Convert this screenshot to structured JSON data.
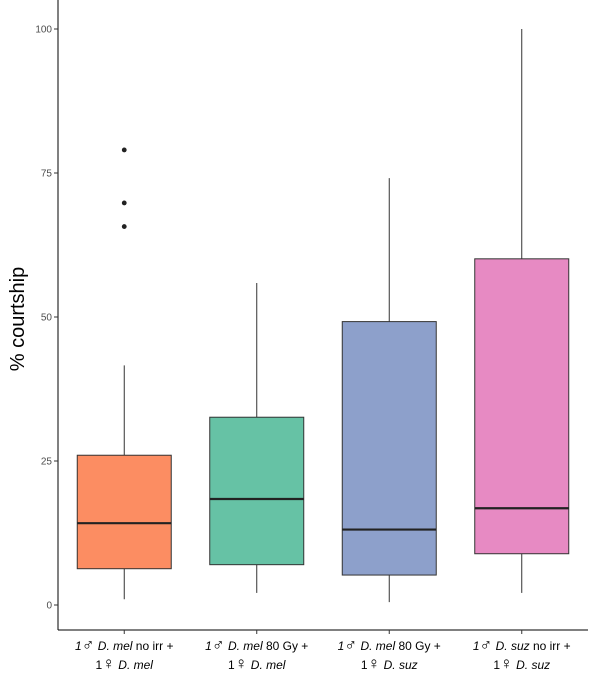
{
  "chart_data": {
    "type": "box",
    "ylabel": "% courtship",
    "xlabel": "",
    "ylim": [
      0,
      100
    ],
    "yticks": [
      0,
      25,
      50,
      75,
      100
    ],
    "grid": false,
    "legend": "none",
    "categories": [
      {
        "line1": {
          "count": "1",
          "male_symbol": "♂",
          "species": "D. mel",
          "treatment": " no irr +"
        },
        "line2": {
          "count": "1",
          "female_symbol": "♀",
          "species": "D. mel"
        },
        "color": "#fc8d62",
        "whisker_low": 1,
        "q1": 6.3,
        "median": 14.2,
        "q3": 26,
        "whisker_high": 41.6,
        "outliers": [
          65.7,
          69.8,
          79
        ]
      },
      {
        "line1": {
          "count": "1",
          "male_symbol": "♂",
          "species": "D. mel",
          "treatment": " 80 Gy +"
        },
        "line2": {
          "count": "1",
          "female_symbol": "♀",
          "species": "D. mel"
        },
        "color": "#66c2a5",
        "whisker_low": 2.1,
        "q1": 7,
        "median": 18.4,
        "q3": 32.6,
        "whisker_high": 55.9,
        "outliers": []
      },
      {
        "line1": {
          "count": "1",
          "male_symbol": "♂",
          "species": "D. mel",
          "treatment": " 80 Gy +"
        },
        "line2": {
          "count": "1",
          "female_symbol": "♀",
          "species": "D. suz"
        },
        "color": "#8da0cb",
        "whisker_low": 0.5,
        "q1": 5.2,
        "median": 13.1,
        "q3": 49.2,
        "whisker_high": 74.1,
        "outliers": []
      },
      {
        "line1": {
          "count": "1",
          "male_symbol": "♂",
          "species": "D. suz",
          "treatment": " no irr +"
        },
        "line2": {
          "count": "1",
          "female_symbol": "♀",
          "species": "D. suz"
        },
        "color": "#e78ac3",
        "whisker_low": 2.1,
        "q1": 8.9,
        "median": 16.8,
        "q3": 60.1,
        "whisker_high": 100,
        "outliers": []
      }
    ]
  }
}
